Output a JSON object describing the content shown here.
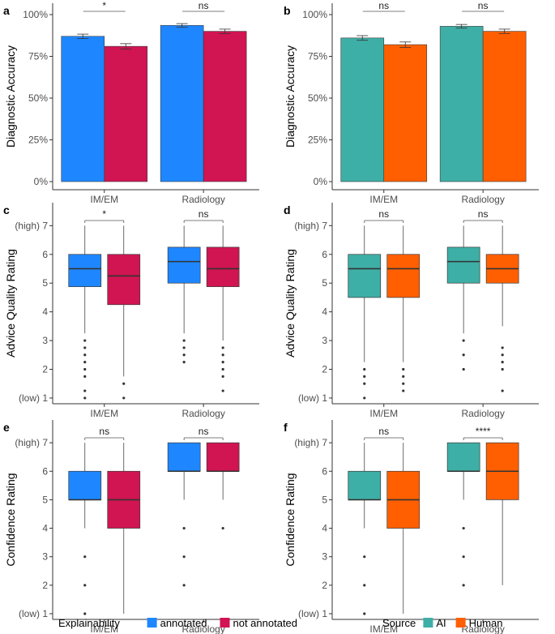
{
  "colors": {
    "annotated": "#1e87ff",
    "not_annotated": "#d11452",
    "ai": "#3eafa6",
    "human": "#ff5f00",
    "axis": "#333333",
    "text": "#4d4d4d",
    "median": "#333333"
  },
  "legends": [
    {
      "title": "Explainability",
      "items": [
        {
          "label": "annotated",
          "color_key": "annotated"
        },
        {
          "label": "not annotated",
          "color_key": "not_annotated"
        }
      ]
    },
    {
      "title": "Source",
      "items": [
        {
          "label": "AI",
          "color_key": "ai"
        },
        {
          "label": "Human",
          "color_key": "human"
        }
      ]
    }
  ],
  "chart_data": [
    {
      "panel": "a",
      "type": "bar",
      "ylabel": "Diagnostic Accuracy",
      "ylim": [
        0,
        1.0
      ],
      "yticks": [
        "0%",
        "25%",
        "50%",
        "75%",
        "100%"
      ],
      "categories": [
        "IM/EM",
        "Radiology"
      ],
      "series": [
        {
          "name": "annotated",
          "color_key": "annotated",
          "values": [
            0.87,
            0.935
          ],
          "err": [
            0.013,
            0.011
          ]
        },
        {
          "name": "not annotated",
          "color_key": "not_annotated",
          "values": [
            0.81,
            0.9
          ],
          "err": [
            0.016,
            0.013
          ]
        }
      ],
      "significance": [
        "*",
        "ns"
      ]
    },
    {
      "panel": "b",
      "type": "bar",
      "ylabel": "Diagnostic Accuracy",
      "ylim": [
        0,
        1.0
      ],
      "yticks": [
        "0%",
        "25%",
        "50%",
        "75%",
        "100%"
      ],
      "categories": [
        "IM/EM",
        "Radiology"
      ],
      "series": [
        {
          "name": "AI",
          "color_key": "ai",
          "values": [
            0.86,
            0.93
          ],
          "err": [
            0.014,
            0.011
          ]
        },
        {
          "name": "Human",
          "color_key": "human",
          "values": [
            0.82,
            0.9
          ],
          "err": [
            0.016,
            0.013
          ]
        }
      ],
      "significance": [
        "ns",
        "ns"
      ]
    },
    {
      "panel": "c",
      "type": "box",
      "ylabel": "Advice Quality Rating",
      "ylim": [
        0.8,
        7.8
      ],
      "yticks": [
        "(low) 1",
        "2",
        "3",
        "4",
        "5",
        "6",
        "(high) 7"
      ],
      "categories": [
        "IM/EM",
        "Radiology"
      ],
      "series": [
        {
          "name": "annotated",
          "color_key": "annotated",
          "boxes": [
            {
              "q1": 4.875,
              "median": 5.5,
              "q3": 6.0,
              "whisker_low": 3.25,
              "whisker_high": 7.0,
              "outliers": [
                3.0,
                2.75,
                2.5,
                2.25,
                2.0,
                1.75,
                1.25,
                1.0
              ]
            },
            {
              "q1": 5.0,
              "median": 5.75,
              "q3": 6.25,
              "whisker_low": 3.25,
              "whisker_high": 7.0,
              "outliers": [
                3.0,
                2.75,
                2.5,
                2.25
              ]
            }
          ]
        },
        {
          "name": "not annotated",
          "color_key": "not_annotated",
          "boxes": [
            {
              "q1": 4.25,
              "median": 5.25,
              "q3": 6.0,
              "whisker_low": 1.75,
              "whisker_high": 7.0,
              "outliers": [
                1.5,
                1.0
              ]
            },
            {
              "q1": 4.875,
              "median": 5.5,
              "q3": 6.25,
              "whisker_low": 3.0,
              "whisker_high": 7.0,
              "outliers": [
                2.75,
                2.5,
                2.25,
                2.0,
                1.75,
                1.25
              ]
            }
          ]
        }
      ],
      "significance": [
        "*",
        "ns"
      ]
    },
    {
      "panel": "d",
      "type": "box",
      "ylabel": "Advice Quality Rating",
      "ylim": [
        0.8,
        7.8
      ],
      "yticks": [
        "(low) 1",
        "2",
        "3",
        "4",
        "5",
        "6",
        "(high) 7"
      ],
      "categories": [
        "IM/EM",
        "Radiology"
      ],
      "series": [
        {
          "name": "AI",
          "color_key": "ai",
          "boxes": [
            {
              "q1": 4.5,
              "median": 5.5,
              "q3": 6.0,
              "whisker_low": 2.25,
              "whisker_high": 7.0,
              "outliers": [
                2.0,
                1.75,
                1.5,
                1.0
              ]
            },
            {
              "q1": 5.0,
              "median": 5.75,
              "q3": 6.25,
              "whisker_low": 3.25,
              "whisker_high": 7.0,
              "outliers": [
                3.0,
                2.5,
                2.0
              ]
            }
          ]
        },
        {
          "name": "Human",
          "color_key": "human",
          "boxes": [
            {
              "q1": 4.5,
              "median": 5.5,
              "q3": 6.0,
              "whisker_low": 2.25,
              "whisker_high": 7.0,
              "outliers": [
                2.0,
                1.75,
                1.5,
                1.25
              ]
            },
            {
              "q1": 5.0,
              "median": 5.5,
              "q3": 6.0,
              "whisker_low": 3.5,
              "whisker_high": 7.0,
              "outliers": [
                2.75,
                2.5,
                2.25,
                2.0,
                1.25
              ]
            }
          ]
        }
      ],
      "significance": [
        "ns",
        "ns"
      ]
    },
    {
      "panel": "e",
      "type": "box",
      "ylabel": "Confidence Rating",
      "ylim": [
        0.8,
        7.8
      ],
      "yticks": [
        "(low) 1",
        "2",
        "3",
        "4",
        "5",
        "6",
        "(high) 7"
      ],
      "categories": [
        "IM/EM",
        "Radiology"
      ],
      "series": [
        {
          "name": "annotated",
          "color_key": "annotated",
          "boxes": [
            {
              "q1": 5.0,
              "median": 5.0,
              "q3": 6.0,
              "whisker_low": 4.0,
              "whisker_high": 7.0,
              "outliers": [
                3.0,
                2.0,
                1.0
              ]
            },
            {
              "q1": 6.0,
              "median": 6.0,
              "q3": 7.0,
              "whisker_low": 5.0,
              "whisker_high": 7.0,
              "outliers": [
                4.0,
                3.0,
                2.0
              ]
            }
          ]
        },
        {
          "name": "not annotated",
          "color_key": "not_annotated",
          "boxes": [
            {
              "q1": 4.0,
              "median": 5.0,
              "q3": 6.0,
              "whisker_low": 1.0,
              "whisker_high": 7.0,
              "outliers": []
            },
            {
              "q1": 6.0,
              "median": 6.0,
              "q3": 7.0,
              "whisker_low": 5.0,
              "whisker_high": 7.0,
              "outliers": [
                4.0
              ]
            }
          ]
        }
      ],
      "significance": [
        "ns",
        "ns"
      ]
    },
    {
      "panel": "f",
      "type": "box",
      "ylabel": "Confidence Rating",
      "ylim": [
        0.8,
        7.8
      ],
      "yticks": [
        "(low) 1",
        "2",
        "3",
        "4",
        "5",
        "6",
        "(high) 7"
      ],
      "categories": [
        "IM/EM",
        "Radiology"
      ],
      "series": [
        {
          "name": "AI",
          "color_key": "ai",
          "boxes": [
            {
              "q1": 5.0,
              "median": 5.0,
              "q3": 6.0,
              "whisker_low": 4.0,
              "whisker_high": 7.0,
              "outliers": [
                3.0,
                2.0,
                1.0
              ]
            },
            {
              "q1": 6.0,
              "median": 6.0,
              "q3": 7.0,
              "whisker_low": 5.0,
              "whisker_high": 7.0,
              "outliers": [
                4.0,
                3.0,
                2.0
              ]
            }
          ]
        },
        {
          "name": "Human",
          "color_key": "human",
          "boxes": [
            {
              "q1": 4.0,
              "median": 5.0,
              "q3": 6.0,
              "whisker_low": 1.0,
              "whisker_high": 7.0,
              "outliers": []
            },
            {
              "q1": 5.0,
              "median": 6.0,
              "q3": 7.0,
              "whisker_low": 2.0,
              "whisker_high": 7.0,
              "outliers": []
            }
          ]
        }
      ],
      "significance": [
        "ns",
        "****"
      ]
    }
  ]
}
